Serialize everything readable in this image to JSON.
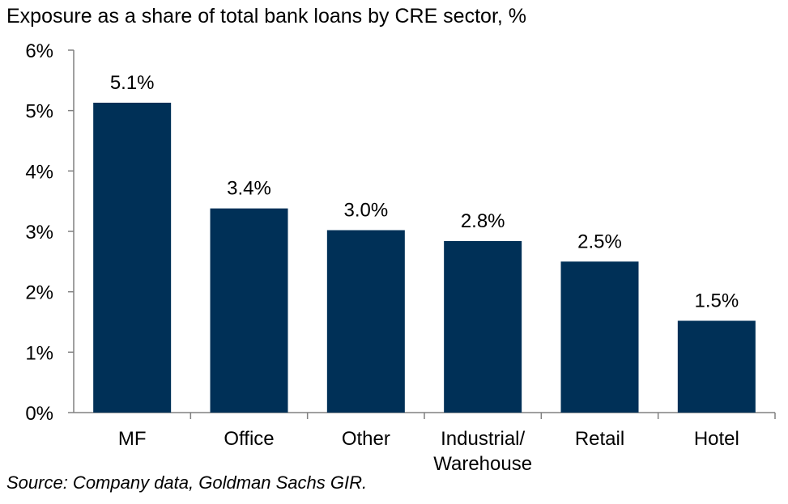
{
  "chart_data": {
    "type": "bar",
    "title": "Exposure as a share of total bank loans by CRE sector, %",
    "categories": [
      [
        "MF"
      ],
      [
        "Office"
      ],
      [
        "Other"
      ],
      [
        "Industrial/",
        "Warehouse"
      ],
      [
        "Retail"
      ],
      [
        "Hotel"
      ]
    ],
    "values": [
      5.13,
      3.38,
      3.02,
      2.84,
      2.5,
      1.52
    ],
    "data_labels": [
      "5.1%",
      "3.4%",
      "3.0%",
      "2.8%",
      "2.5%",
      "1.5%"
    ],
    "y_ticks": [
      "0%",
      "1%",
      "2%",
      "3%",
      "4%",
      "5%",
      "6%"
    ],
    "ylim": [
      0,
      6
    ],
    "grid": false,
    "bar_color": "#003057",
    "source": "Source: Company data, Goldman Sachs GIR."
  }
}
